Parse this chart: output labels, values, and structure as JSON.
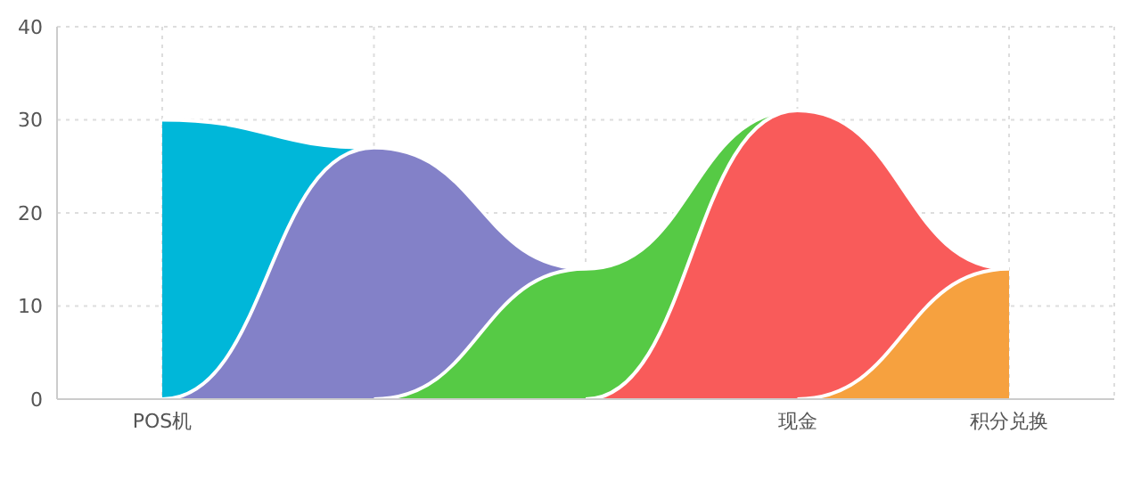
{
  "chart_data": {
    "type": "area",
    "categories": [
      "POS机",
      null,
      null,
      "现金",
      "积分兑换"
    ],
    "series": [
      {
        "color": "#00b7d9",
        "values": [
          30,
          27,
          null,
          null,
          null
        ]
      },
      {
        "color": "#8381c8",
        "values": [
          0,
          27,
          14,
          null,
          null
        ]
      },
      {
        "color": "#56ca45",
        "values": [
          null,
          0,
          14,
          31,
          null
        ]
      },
      {
        "color": "#f95b5a",
        "values": [
          null,
          null,
          0,
          31,
          14
        ]
      },
      {
        "color": "#f6a13f",
        "values": [
          null,
          null,
          null,
          0,
          14
        ]
      }
    ],
    "ylim": [
      0,
      40
    ],
    "yticks": [
      0,
      10,
      20,
      30,
      40
    ],
    "grid": true,
    "legend": false
  }
}
